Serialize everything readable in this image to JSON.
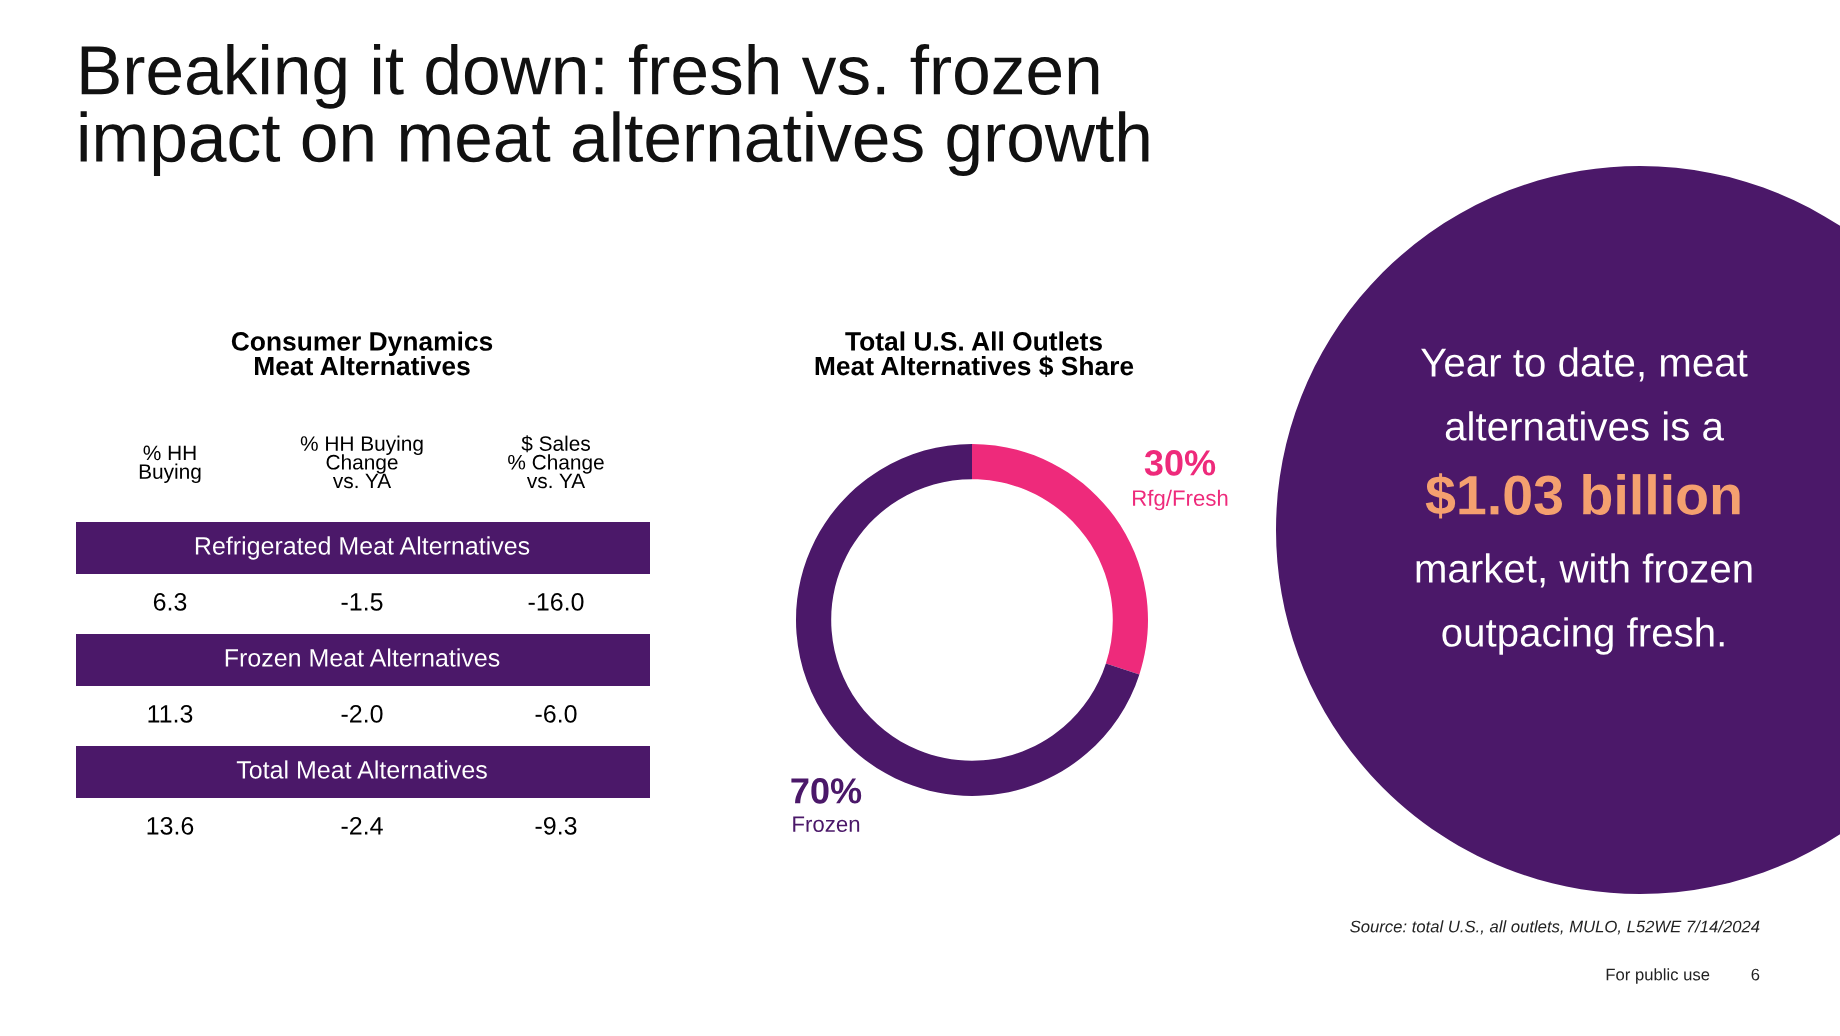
{
  "chart_data": [
    {
      "type": "other",
      "title": "Breaking it down: fresh vs. frozen\nimpact on meat alternatives growth",
      "annotations": [
        "Source: total U.S., all outlets, MULO, L52WE 7/14/2024",
        "For public use",
        "6"
      ]
    },
    {
      "type": "other",
      "title": "Consumer Dynamics\nMeat Alternatives",
      "color": "#4b1869",
      "categories": [
        "% HH\nBuying",
        "% HH Buying\nChange\nvs. YA",
        "$ Sales\n% Change\nvs. YA"
      ],
      "y_categories": [
        "Refrigerated Meat Alternatives",
        "Frozen Meat Alternatives",
        "Total Meat Alternatives"
      ],
      "cell_labels": [
        [
          "6.3",
          "-1.5",
          "-16.0"
        ],
        [
          "11.3",
          "-2.0",
          "-6.0"
        ],
        [
          "13.6",
          "-2.4",
          "-9.3"
        ]
      ]
    },
    {
      "type": "donut",
      "title": "Total U.S. All Outlets\nMeat Alternatives $ Share",
      "categories": [
        "Rfg/Fresh",
        "Frozen"
      ],
      "values": [
        30,
        70
      ],
      "colors": [
        "#ee2a7b",
        "#4b1869"
      ],
      "value_labels": [
        "30%",
        "70%"
      ]
    },
    {
      "type": "other",
      "color": "#4b1869",
      "annotations": [
        "Year to date, meat",
        "alternatives is a",
        "$1.03 billion",
        "market, with frozen",
        "outpacing fresh."
      ],
      "colors": [
        "#ffffff",
        "#ffffff",
        "#f4a06f",
        "#ffffff",
        "#ffffff"
      ]
    }
  ]
}
